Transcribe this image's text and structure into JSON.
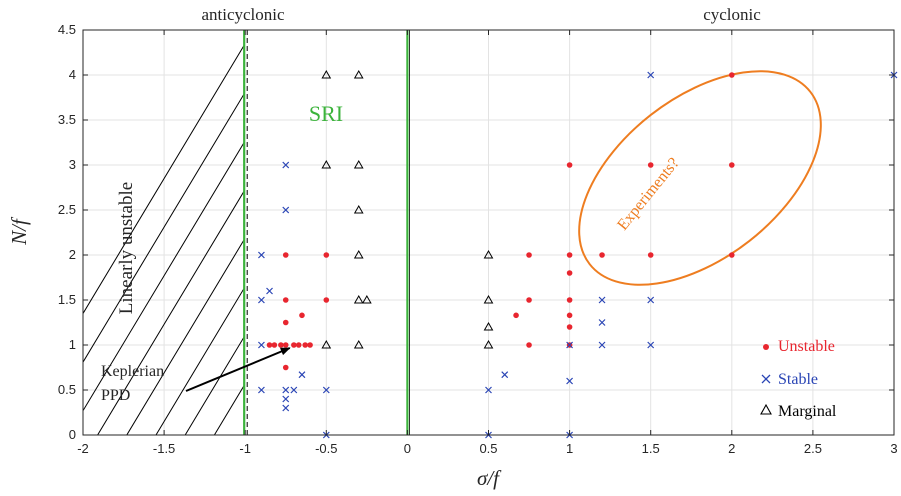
{
  "chart_data": {
    "type": "scatter",
    "title": "",
    "xlabel": "σ/f",
    "ylabel": "N/f",
    "xlim": [
      -2,
      3
    ],
    "ylim": [
      0,
      4.5
    ],
    "x_ticks": [
      -2,
      -1.5,
      -1,
      -0.5,
      0,
      0.5,
      1,
      1.5,
      2,
      2.5,
      3
    ],
    "x_tick_labels": [
      "-2",
      "-1.5",
      "-1",
      "-0.5",
      "0",
      "0.5",
      "1",
      "1.5",
      "2",
      "2.5",
      "3"
    ],
    "y_ticks": [
      0,
      0.5,
      1,
      1.5,
      2,
      2.5,
      3,
      3.5,
      4,
      4.5
    ],
    "y_tick_labels": [
      "0",
      "0.5",
      "1",
      "1.5",
      "2",
      "2.5",
      "3",
      "3.5",
      "4",
      "4.5"
    ],
    "grid": true,
    "legend_position": "bottom-right",
    "top_labels": {
      "left": "anticyclonic",
      "right": "cyclonic"
    },
    "colors": {
      "unstable": "#e8262f",
      "stable": "#2a45b5",
      "marginal": "#000000",
      "sri": "#3bb33b",
      "experiments": "#ee7d20",
      "hatch": "#000000"
    },
    "annotations": {
      "sri": "SRI",
      "linearly_unstable": "Linearly unstable",
      "keplerian_line1": "Keplerian",
      "keplerian_line2": "PPD",
      "experiments": "Experiments?"
    },
    "keplerian_point": [
      -0.75,
      1
    ],
    "series": [
      {
        "name": "Unstable",
        "marker": "dot",
        "points": [
          [
            -0.75,
            2
          ],
          [
            -0.5,
            2
          ],
          [
            -0.75,
            1.5
          ],
          [
            -0.5,
            1.5
          ],
          [
            -0.65,
            1.33
          ],
          [
            -0.75,
            1.25
          ],
          [
            -0.85,
            1
          ],
          [
            -0.82,
            1
          ],
          [
            -0.78,
            1
          ],
          [
            -0.75,
            1
          ],
          [
            -0.7,
            1
          ],
          [
            -0.67,
            1
          ],
          [
            -0.63,
            1
          ],
          [
            -0.6,
            1
          ],
          [
            -0.75,
            0.75
          ],
          [
            0.67,
            1.33
          ],
          [
            0.75,
            2
          ],
          [
            0.75,
            1.5
          ],
          [
            0.75,
            1
          ],
          [
            1,
            3
          ],
          [
            1,
            2
          ],
          [
            1,
            1.8
          ],
          [
            1,
            1.5
          ],
          [
            1,
            1.33
          ],
          [
            1,
            1.2
          ],
          [
            1,
            1
          ],
          [
            1.2,
            2
          ],
          [
            1.5,
            3
          ],
          [
            1.5,
            2
          ],
          [
            2,
            4
          ],
          [
            2,
            3
          ],
          [
            2,
            2
          ]
        ]
      },
      {
        "name": "Stable",
        "marker": "x",
        "points": [
          [
            -0.9,
            2
          ],
          [
            -0.75,
            3
          ],
          [
            -0.75,
            2.5
          ],
          [
            -0.9,
            1.5
          ],
          [
            -0.85,
            1.6
          ],
          [
            -0.9,
            1
          ],
          [
            -0.9,
            0.5
          ],
          [
            -0.75,
            0.5
          ],
          [
            -0.7,
            0.5
          ],
          [
            -0.75,
            0.4
          ],
          [
            -0.75,
            0.3
          ],
          [
            -0.65,
            0.67
          ],
          [
            -0.5,
            0.5
          ],
          [
            -0.5,
            0
          ],
          [
            0.5,
            0.5
          ],
          [
            0.5,
            0
          ],
          [
            0.6,
            0.67
          ],
          [
            1,
            1
          ],
          [
            1,
            0.6
          ],
          [
            1,
            0
          ],
          [
            1.2,
            1.5
          ],
          [
            1.2,
            1.25
          ],
          [
            1.2,
            1
          ],
          [
            1.5,
            1.5
          ],
          [
            1.5,
            1
          ],
          [
            1.5,
            4
          ],
          [
            3,
            4
          ]
        ]
      },
      {
        "name": "Marginal",
        "marker": "triangle",
        "points": [
          [
            -0.5,
            4
          ],
          [
            -0.3,
            4
          ],
          [
            -0.5,
            3
          ],
          [
            -0.3,
            3
          ],
          [
            -0.3,
            2.5
          ],
          [
            -0.3,
            2
          ],
          [
            -0.3,
            1.5
          ],
          [
            -0.25,
            1.5
          ],
          [
            -0.5,
            1
          ],
          [
            -0.3,
            1
          ],
          [
            0.5,
            2
          ],
          [
            0.5,
            1.5
          ],
          [
            0.5,
            1.2
          ],
          [
            0.5,
            1
          ]
        ]
      }
    ]
  }
}
